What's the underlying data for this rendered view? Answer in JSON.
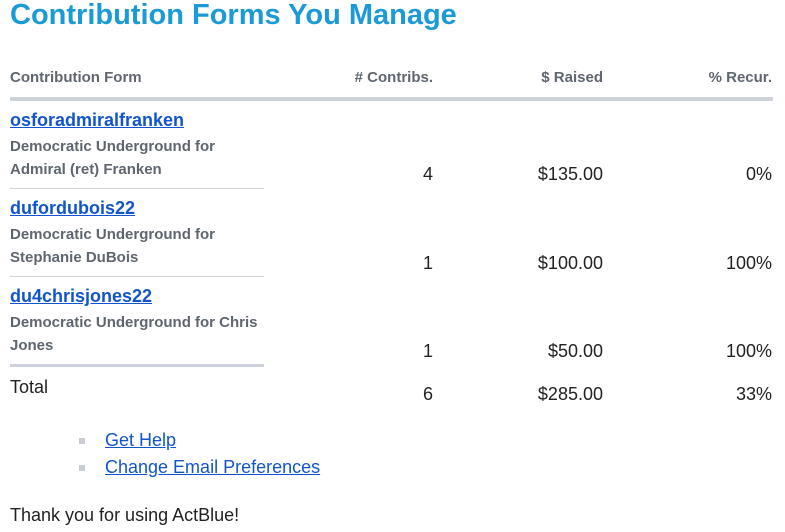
{
  "title": "Contribution Forms You Manage",
  "headers": {
    "form": "Contribution Form",
    "contribs": "# Contribs.",
    "raised": "$ Raised",
    "recur": "% Recur."
  },
  "rows": [
    {
      "name": "osforadmiralfranken",
      "desc": "Democratic Underground for Admiral (ret) Franken",
      "contribs": "4",
      "raised": "$135.00",
      "recur": "0%"
    },
    {
      "name": "dufordubois22",
      "desc": "Democratic Underground for Stephanie DuBois",
      "contribs": "1",
      "raised": "$100.00",
      "recur": "100%"
    },
    {
      "name": "du4chrisjones22",
      "desc": "Democratic Underground for Chris Jones",
      "contribs": "1",
      "raised": "$50.00",
      "recur": "100%"
    }
  ],
  "total": {
    "label": "Total",
    "contribs": "6",
    "raised": "$285.00",
    "recur": "33%"
  },
  "links": [
    "Get Help",
    "Change Email Preferences"
  ],
  "thanks": "Thank you for using ActBlue!"
}
